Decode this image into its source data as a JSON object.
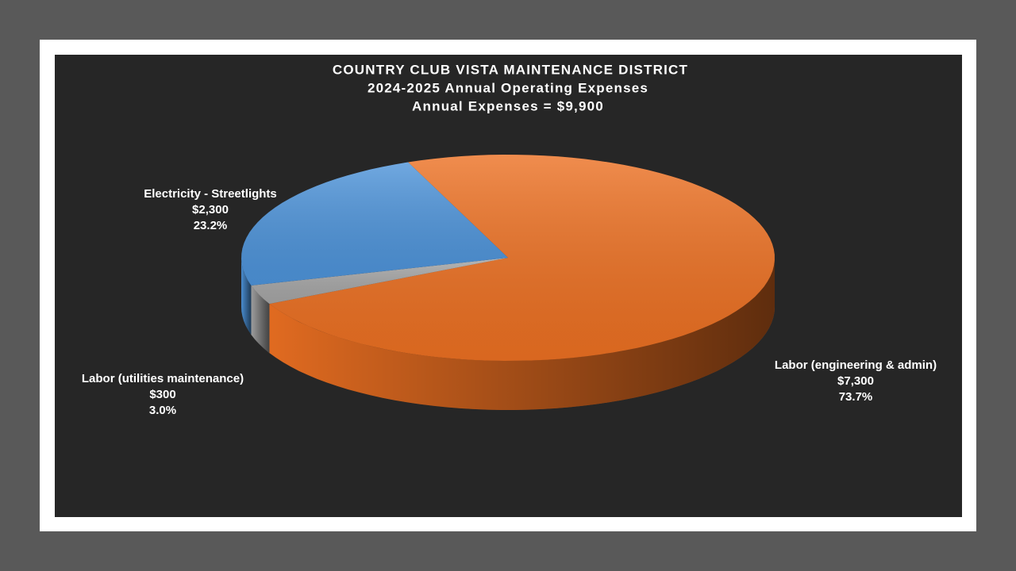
{
  "chart_data": {
    "type": "pie",
    "title": "COUNTRY CLUB VISTA MAINTENANCE DISTRICT",
    "subtitle": [
      "2024-2025 Annual Operating Expenses",
      "Annual Expenses = $9,900"
    ],
    "categories": [
      "Labor (engineering & admin)",
      "Labor (utilities maintenance)",
      "Electricity - Streetlights"
    ],
    "values": [
      7300,
      300,
      2300
    ],
    "value_labels": [
      "$7,300",
      "$300",
      "$2,300"
    ],
    "percents": [
      73.7,
      3.0,
      23.2
    ],
    "percent_labels": [
      "73.7%",
      "3.0%",
      "23.2%"
    ],
    "colors": [
      "#ec7022",
      "#a5a5a5",
      "#4d93d9"
    ]
  }
}
